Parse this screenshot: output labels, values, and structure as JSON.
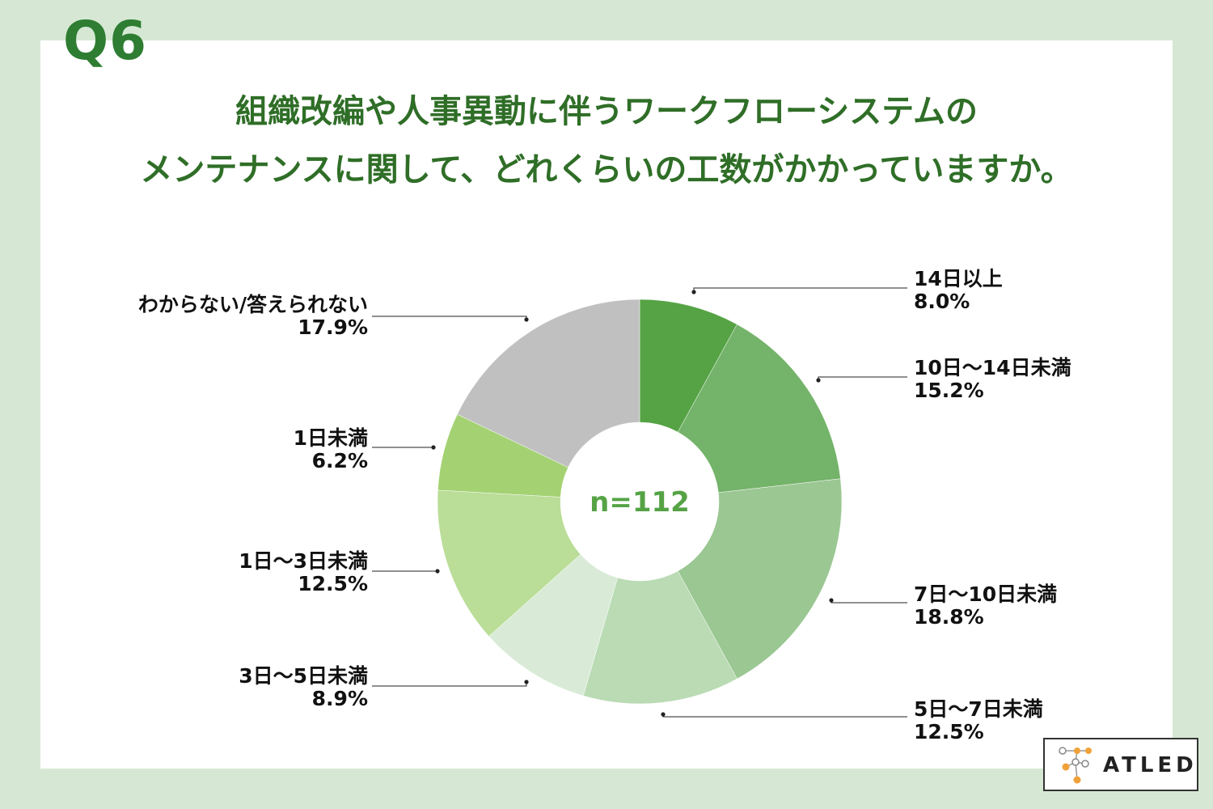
{
  "question_number": "Q6",
  "title_line1": "組織改編や人事異動に伴うワークフローシステムの",
  "title_line2": "メンテナンスに関して、どれくらいの工数がかかっていますか。",
  "chart_data": {
    "type": "pie",
    "center_label": "n=112",
    "slices": [
      {
        "label": "14日以上",
        "value": 8.0,
        "value_label": "8.0%",
        "color": "#55a345"
      },
      {
        "label": "10日～14日未満",
        "value": 15.2,
        "value_label": "15.2%",
        "color": "#74b36a"
      },
      {
        "label": "7日～10日未満",
        "value": 18.8,
        "value_label": "18.8%",
        "color": "#9ac792"
      },
      {
        "label": "5日～7日未満",
        "value": 12.5,
        "value_label": "12.5%",
        "color": "#badbb4"
      },
      {
        "label": "3日～5日未満",
        "value": 8.9,
        "value_label": "8.9%",
        "color": "#d9ebd7"
      },
      {
        "label": "1日～3日未満",
        "value": 12.5,
        "value_label": "12.5%",
        "color": "#badd97"
      },
      {
        "label": "1日未満",
        "value": 6.2,
        "value_label": "6.2%",
        "color": "#a4d273"
      },
      {
        "label": "わからない/答えられない",
        "value": 17.9,
        "value_label": "17.9%",
        "color": "#c0c0c0"
      }
    ]
  },
  "logo": {
    "text": "ATLED"
  }
}
